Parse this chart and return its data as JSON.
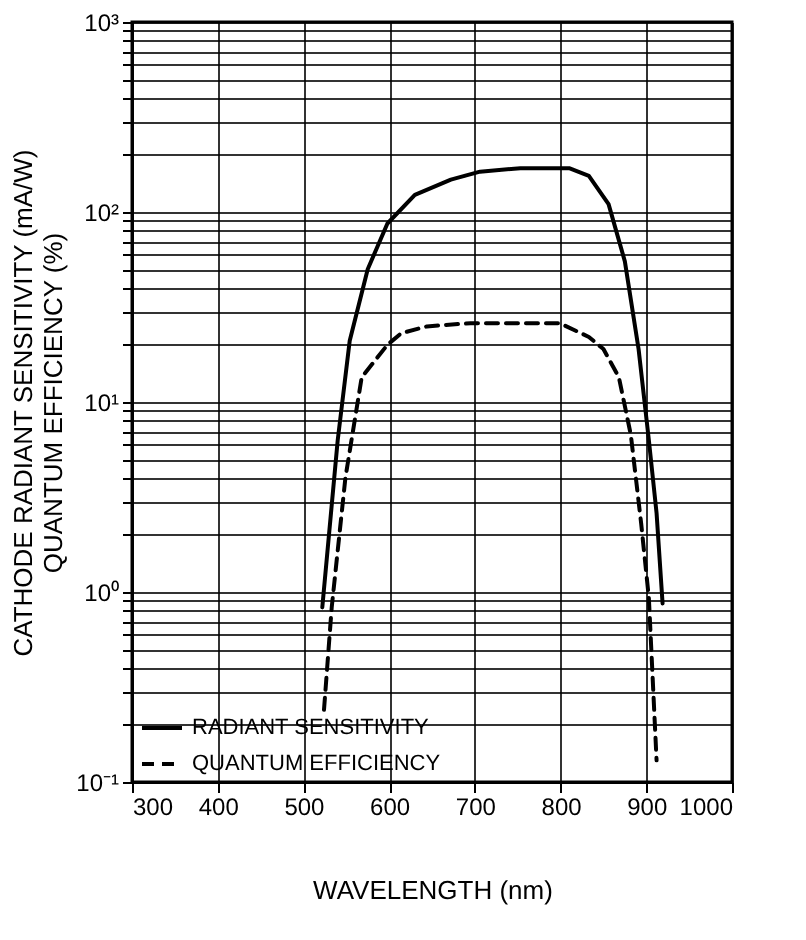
{
  "chart_data": {
    "type": "line",
    "xlabel": "WAVELENGTH (nm)",
    "ylabel": "CATHODE RADIANT SENSITIVITY (mA/W)\nQUANTUM EFFICIENCY (%)",
    "log": "y",
    "grid": true,
    "legend": "bottom left",
    "marker": "none",
    "xlim": [
      300,
      1000
    ],
    "xticks": [
      300,
      400,
      500,
      600,
      700,
      800,
      900,
      1000
    ],
    "ylim": [
      0.1,
      1000
    ],
    "yticks": [
      {
        "value": 0.1,
        "label": "10⁻¹"
      },
      {
        "value": 0.2,
        "label": null
      },
      {
        "value": 0.3,
        "label": null
      },
      {
        "value": 0.4,
        "label": null
      },
      {
        "value": 0.5,
        "label": null
      },
      {
        "value": 0.6,
        "label": null
      },
      {
        "value": 0.7,
        "label": null
      },
      {
        "value": 0.8,
        "label": null
      },
      {
        "value": 0.9,
        "label": null
      },
      {
        "value": 1,
        "label": "10⁰"
      },
      {
        "value": 2,
        "label": null
      },
      {
        "value": 3,
        "label": null
      },
      {
        "value": 4,
        "label": null
      },
      {
        "value": 5,
        "label": null
      },
      {
        "value": 6,
        "label": null
      },
      {
        "value": 7,
        "label": null
      },
      {
        "value": 8,
        "label": null
      },
      {
        "value": 9,
        "label": null
      },
      {
        "value": 10,
        "label": "10¹"
      },
      {
        "value": 20,
        "label": null
      },
      {
        "value": 30,
        "label": null
      },
      {
        "value": 40,
        "label": null
      },
      {
        "value": 50,
        "label": null
      },
      {
        "value": 60,
        "label": null
      },
      {
        "value": 70,
        "label": null
      },
      {
        "value": 80,
        "label": null
      },
      {
        "value": 90,
        "label": null
      },
      {
        "value": 100,
        "label": "10²"
      },
      {
        "value": 200,
        "label": null
      },
      {
        "value": 300,
        "label": null
      },
      {
        "value": 400,
        "label": null
      },
      {
        "value": 500,
        "label": null
      },
      {
        "value": 600,
        "label": null
      },
      {
        "value": 700,
        "label": null
      },
      {
        "value": 800,
        "label": null
      },
      {
        "value": 900,
        "label": null
      },
      {
        "value": 1000,
        "label": "10³"
      }
    ],
    "series": [
      {
        "name": "RADIANT SENSITIVITY",
        "color": "#000000",
        "line_style": "solid",
        "x": [
          522,
          540,
          554,
          575,
          598,
          630,
          672,
          706,
          753,
          810,
          833,
          856,
          875,
          891,
          903,
          912,
          919
        ],
        "values": [
          0.83,
          6.3,
          21,
          50,
          87,
          123,
          148,
          163,
          170,
          170,
          155,
          110,
          55,
          19,
          6.3,
          2.6,
          0.87
        ]
      },
      {
        "name": "QUANTUM EFFICIENCY",
        "color": "#000000",
        "line_style": "dashed",
        "x": [
          524,
          533,
          549,
          568,
          598,
          614,
          644,
          695,
          799,
          833,
          850,
          868,
          882,
          894,
          903,
          912
        ],
        "values": [
          0.24,
          0.83,
          4,
          13.5,
          20,
          23,
          25,
          26,
          26,
          22,
          19,
          13.5,
          6.7,
          2.3,
          0.93,
          0.13
        ]
      }
    ]
  }
}
